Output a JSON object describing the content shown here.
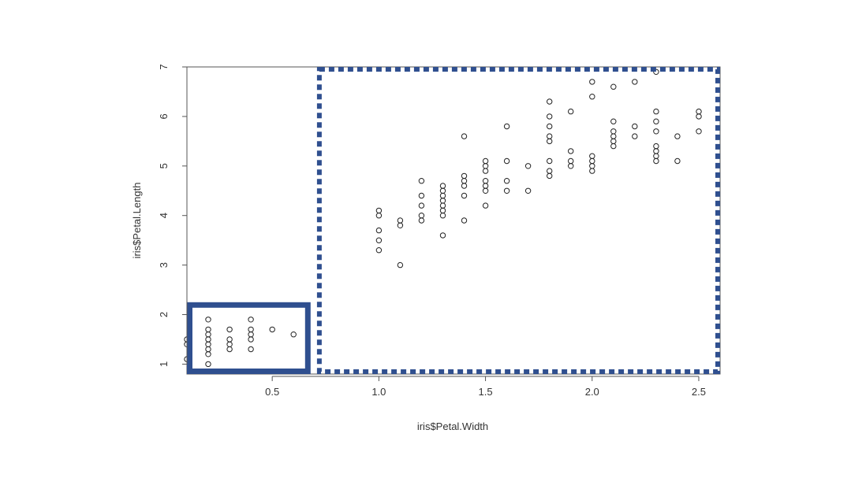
{
  "chart_data": {
    "type": "scatter",
    "title": "",
    "xlabel": "iris$Petal.Width",
    "ylabel": "iris$Petal.Length",
    "xlim": [
      0.1,
      2.6
    ],
    "ylim": [
      0.8,
      7.0
    ],
    "x_ticks": [
      {
        "value": 0.5,
        "label": "0.5"
      },
      {
        "value": 1.0,
        "label": "1.0"
      },
      {
        "value": 1.5,
        "label": "1.5"
      },
      {
        "value": 2.0,
        "label": "2.0"
      },
      {
        "value": 2.5,
        "label": "2.5"
      }
    ],
    "y_ticks": [
      {
        "value": 1,
        "label": "1"
      },
      {
        "value": 2,
        "label": "2"
      },
      {
        "value": 3,
        "label": "3"
      },
      {
        "value": 4,
        "label": "4"
      },
      {
        "value": 5,
        "label": "5"
      },
      {
        "value": 6,
        "label": "6"
      },
      {
        "value": 7,
        "label": "7"
      }
    ],
    "grid": false,
    "point_style": "open-circle",
    "points": [
      {
        "x": 0.1,
        "y": 1.1
      },
      {
        "x": 0.1,
        "y": 1.4
      },
      {
        "x": 0.1,
        "y": 1.5
      },
      {
        "x": 0.2,
        "y": 1.0
      },
      {
        "x": 0.2,
        "y": 1.2
      },
      {
        "x": 0.2,
        "y": 1.3
      },
      {
        "x": 0.2,
        "y": 1.4
      },
      {
        "x": 0.2,
        "y": 1.5
      },
      {
        "x": 0.2,
        "y": 1.6
      },
      {
        "x": 0.2,
        "y": 1.7
      },
      {
        "x": 0.2,
        "y": 1.9
      },
      {
        "x": 0.3,
        "y": 1.3
      },
      {
        "x": 0.3,
        "y": 1.4
      },
      {
        "x": 0.3,
        "y": 1.5
      },
      {
        "x": 0.3,
        "y": 1.7
      },
      {
        "x": 0.4,
        "y": 1.3
      },
      {
        "x": 0.4,
        "y": 1.5
      },
      {
        "x": 0.4,
        "y": 1.6
      },
      {
        "x": 0.4,
        "y": 1.7
      },
      {
        "x": 0.4,
        "y": 1.9
      },
      {
        "x": 0.5,
        "y": 1.7
      },
      {
        "x": 0.6,
        "y": 1.6
      },
      {
        "x": 1.0,
        "y": 3.3
      },
      {
        "x": 1.0,
        "y": 3.5
      },
      {
        "x": 1.0,
        "y": 3.7
      },
      {
        "x": 1.0,
        "y": 4.0
      },
      {
        "x": 1.0,
        "y": 4.1
      },
      {
        "x": 1.1,
        "y": 3.0
      },
      {
        "x": 1.1,
        "y": 3.8
      },
      {
        "x": 1.1,
        "y": 3.9
      },
      {
        "x": 1.2,
        "y": 3.9
      },
      {
        "x": 1.2,
        "y": 4.0
      },
      {
        "x": 1.2,
        "y": 4.2
      },
      {
        "x": 1.2,
        "y": 4.4
      },
      {
        "x": 1.2,
        "y": 4.7
      },
      {
        "x": 1.3,
        "y": 3.6
      },
      {
        "x": 1.3,
        "y": 4.0
      },
      {
        "x": 1.3,
        "y": 4.1
      },
      {
        "x": 1.3,
        "y": 4.2
      },
      {
        "x": 1.3,
        "y": 4.3
      },
      {
        "x": 1.3,
        "y": 4.4
      },
      {
        "x": 1.3,
        "y": 4.5
      },
      {
        "x": 1.3,
        "y": 4.6
      },
      {
        "x": 1.4,
        "y": 3.9
      },
      {
        "x": 1.4,
        "y": 4.4
      },
      {
        "x": 1.4,
        "y": 4.6
      },
      {
        "x": 1.4,
        "y": 4.7
      },
      {
        "x": 1.4,
        "y": 4.8
      },
      {
        "x": 1.4,
        "y": 5.6
      },
      {
        "x": 1.5,
        "y": 4.2
      },
      {
        "x": 1.5,
        "y": 4.5
      },
      {
        "x": 1.5,
        "y": 4.6
      },
      {
        "x": 1.5,
        "y": 4.7
      },
      {
        "x": 1.5,
        "y": 4.9
      },
      {
        "x": 1.5,
        "y": 5.0
      },
      {
        "x": 1.5,
        "y": 5.1
      },
      {
        "x": 1.6,
        "y": 4.5
      },
      {
        "x": 1.6,
        "y": 4.7
      },
      {
        "x": 1.6,
        "y": 5.1
      },
      {
        "x": 1.6,
        "y": 5.8
      },
      {
        "x": 1.7,
        "y": 4.5
      },
      {
        "x": 1.7,
        "y": 5.0
      },
      {
        "x": 1.8,
        "y": 4.8
      },
      {
        "x": 1.8,
        "y": 4.9
      },
      {
        "x": 1.8,
        "y": 5.1
      },
      {
        "x": 1.8,
        "y": 5.5
      },
      {
        "x": 1.8,
        "y": 5.6
      },
      {
        "x": 1.8,
        "y": 5.8
      },
      {
        "x": 1.8,
        "y": 6.0
      },
      {
        "x": 1.8,
        "y": 6.3
      },
      {
        "x": 1.9,
        "y": 5.0
      },
      {
        "x": 1.9,
        "y": 5.1
      },
      {
        "x": 1.9,
        "y": 5.3
      },
      {
        "x": 1.9,
        "y": 6.1
      },
      {
        "x": 2.0,
        "y": 4.9
      },
      {
        "x": 2.0,
        "y": 5.0
      },
      {
        "x": 2.0,
        "y": 5.1
      },
      {
        "x": 2.0,
        "y": 5.2
      },
      {
        "x": 2.0,
        "y": 6.4
      },
      {
        "x": 2.0,
        "y": 6.7
      },
      {
        "x": 2.1,
        "y": 5.4
      },
      {
        "x": 2.1,
        "y": 5.5
      },
      {
        "x": 2.1,
        "y": 5.6
      },
      {
        "x": 2.1,
        "y": 5.7
      },
      {
        "x": 2.1,
        "y": 5.9
      },
      {
        "x": 2.1,
        "y": 6.6
      },
      {
        "x": 2.2,
        "y": 5.6
      },
      {
        "x": 2.2,
        "y": 5.8
      },
      {
        "x": 2.2,
        "y": 6.7
      },
      {
        "x": 2.3,
        "y": 5.1
      },
      {
        "x": 2.3,
        "y": 5.2
      },
      {
        "x": 2.3,
        "y": 5.3
      },
      {
        "x": 2.3,
        "y": 5.4
      },
      {
        "x": 2.3,
        "y": 5.7
      },
      {
        "x": 2.3,
        "y": 5.9
      },
      {
        "x": 2.3,
        "y": 6.1
      },
      {
        "x": 2.3,
        "y": 6.9
      },
      {
        "x": 2.4,
        "y": 5.1
      },
      {
        "x": 2.4,
        "y": 5.6
      },
      {
        "x": 2.5,
        "y": 5.7
      },
      {
        "x": 2.5,
        "y": 6.0
      },
      {
        "x": 2.5,
        "y": 6.1
      }
    ],
    "highlights": [
      {
        "style": "solid",
        "x_range": [
          0.1,
          0.68
        ],
        "y_range": [
          0.8,
          2.25
        ],
        "color": "#2f4f8f"
      },
      {
        "style": "dashed",
        "x_range": [
          0.71,
          2.6
        ],
        "y_range": [
          0.8,
          7.0
        ],
        "color": "#2f4f8f"
      }
    ]
  }
}
